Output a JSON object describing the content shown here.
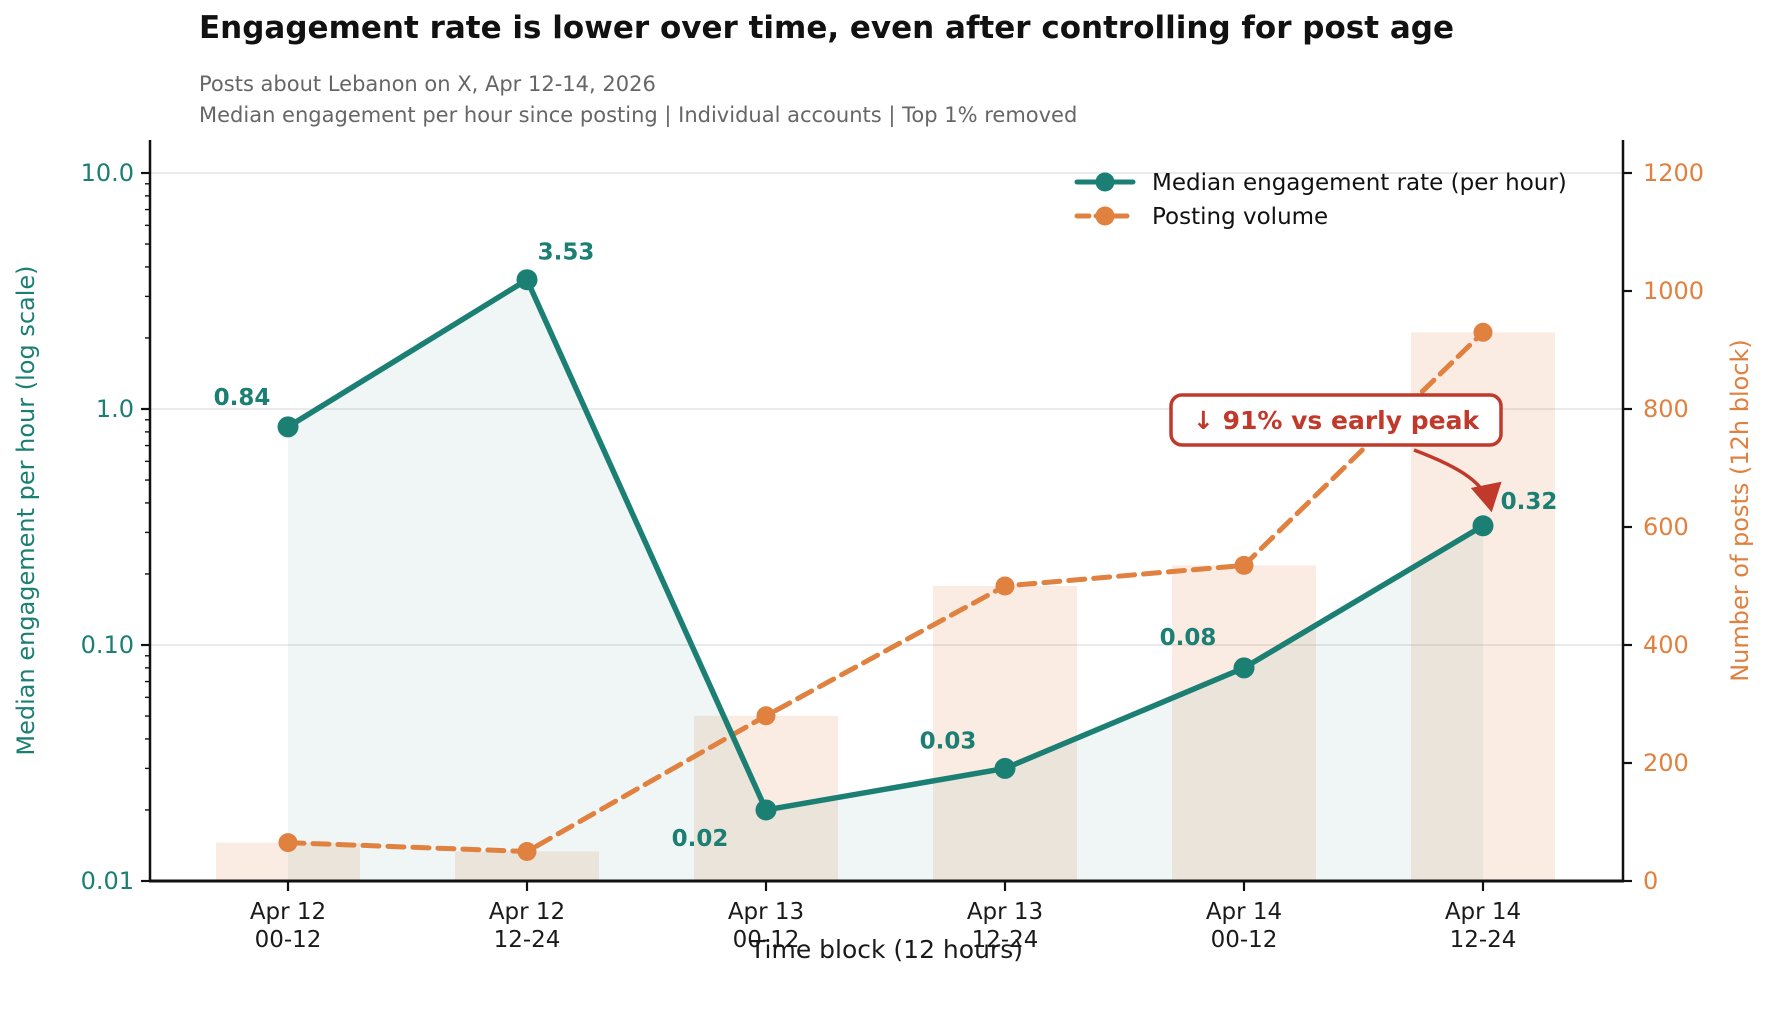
{
  "title": "Engagement rate is lower over time, even after controlling for post age",
  "subtitle1": "Posts about Lebanon on X, Apr 12-14, 2026",
  "subtitle2": "Median engagement per hour since posting  |  Individual accounts  |  Top 1% removed",
  "colors": {
    "engagement": "#1b7f73",
    "engagement_fill": "rgba(27,127,115,0.07)",
    "volume": "#e08140",
    "volume_bar_fill": "rgba(224,129,64,0.15)",
    "annotation_red": "#c0392b",
    "grid": "#e4e4e4",
    "spine": "#111111",
    "tick_text": "#1a1a1a",
    "subtitle_gray": "#666666"
  },
  "chart_data": {
    "type": "line",
    "title": "Engagement rate is lower over time, even after controlling for post age",
    "categories": [
      {
        "line1": "Apr 12",
        "line2": "00-12"
      },
      {
        "line1": "Apr 12",
        "line2": "12-24"
      },
      {
        "line1": "Apr 13",
        "line2": "00-12"
      },
      {
        "line1": "Apr 13",
        "line2": "12-24"
      },
      {
        "line1": "Apr 14",
        "line2": "00-12"
      },
      {
        "line1": "Apr 14",
        "line2": "12-24"
      }
    ],
    "series": [
      {
        "name": "Median engagement rate (per hour)",
        "kind": "line",
        "axis": "left",
        "style": "solid",
        "area_fill": true,
        "values": [
          0.84,
          3.53,
          0.02,
          0.03,
          0.08,
          0.32
        ],
        "data_labels": [
          "0.84",
          "3.53",
          "0.02",
          "0.03",
          "0.08",
          "0.32"
        ]
      },
      {
        "name": "Posting volume",
        "kind": "line+bar",
        "axis": "right",
        "style": "dashed",
        "area_fill": false,
        "values": [
          65,
          50,
          280,
          500,
          535,
          930
        ],
        "data_labels": []
      }
    ],
    "left_axis": {
      "label": "Median engagement per hour (log scale)",
      "scale": "log",
      "range": [
        0.01,
        13.8
      ],
      "tick_labels": [
        "10.0",
        "1.0",
        "0.10",
        "0.01"
      ],
      "tick_values": [
        10,
        1,
        0.1,
        0.01
      ],
      "grid": true
    },
    "right_axis": {
      "label": "Number of posts (12h block)",
      "scale": "linear",
      "range": [
        0,
        1200
      ],
      "tick_values": [
        0,
        200,
        400,
        600,
        800,
        1000,
        1200
      ],
      "grid": false
    },
    "x_axis": {
      "label": "Time block (12 hours)"
    },
    "legend": [
      {
        "label": "Median engagement rate (per hour)",
        "series": 0
      },
      {
        "label": "Posting volume",
        "series": 1
      }
    ],
    "annotation": {
      "text": "↓ 91% vs early peak",
      "target_series": 0,
      "target_index": 5
    }
  }
}
